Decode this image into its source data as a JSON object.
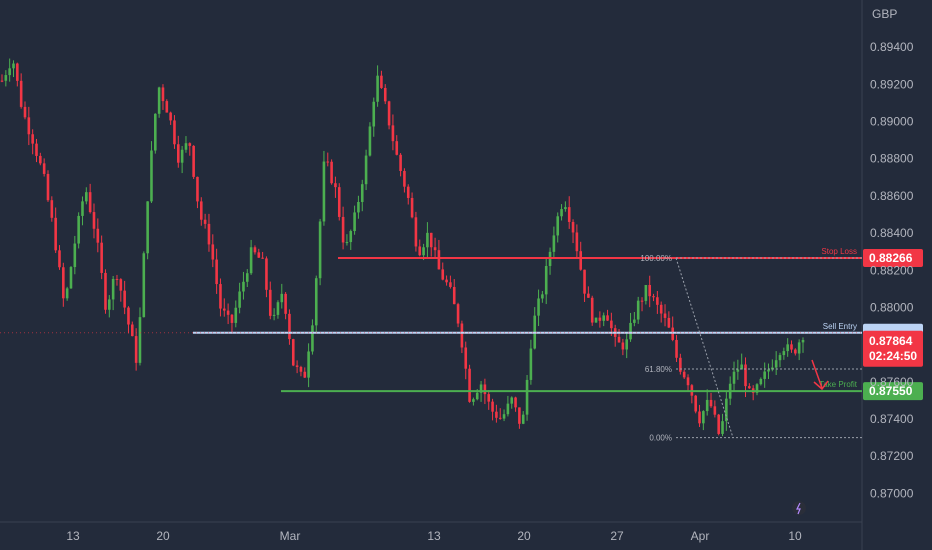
{
  "chart_data": {
    "type": "candlestick",
    "currency_label": "GBP",
    "y_axis": {
      "min": 0.87,
      "max": 0.896,
      "ticks": [
        "0.89400",
        "0.89200",
        "0.89000",
        "0.88800",
        "0.88600",
        "0.88400",
        "0.88200",
        "0.88000",
        "0.87600",
        "0.87400",
        "0.87200",
        "0.87000"
      ]
    },
    "x_axis": {
      "ticks": [
        "13",
        "20",
        "Mar",
        "13",
        "20",
        "27",
        "Apr",
        "10"
      ]
    },
    "levels": [
      {
        "name": "stop-loss",
        "label": "Stop Loss",
        "price": 0.88266,
        "badge": "0.88266",
        "color": "#f23645"
      },
      {
        "name": "sell-entry",
        "label": "Sell Entry",
        "price": 0.87864,
        "badge": "0.87864",
        "color": "#bcd4f5"
      },
      {
        "name": "take-profit",
        "label": "Take Profit",
        "price": 0.8755,
        "badge": "0.87550",
        "color": "#4caf50"
      }
    ],
    "current_price": {
      "value": "0.87864",
      "countdown": "02:24:50"
    },
    "fib": {
      "top_label": "100.00%",
      "mid_label": "61.80%",
      "bottom_label": "0.00%",
      "top_price": 0.88266,
      "bottom_price": 0.873
    },
    "price_path": [
      0.8922,
      0.8935,
      0.8905,
      0.889,
      0.887,
      0.884,
      0.88,
      0.8835,
      0.8865,
      0.884,
      0.88,
      0.882,
      0.8795,
      0.877,
      0.886,
      0.892,
      0.8905,
      0.888,
      0.889,
      0.885,
      0.8835,
      0.88,
      0.879,
      0.881,
      0.883,
      0.8825,
      0.879,
      0.881,
      0.877,
      0.876,
      0.88,
      0.888,
      0.8865,
      0.883,
      0.885,
      0.888,
      0.8925,
      0.8905,
      0.888,
      0.886,
      0.883,
      0.884,
      0.882,
      0.881,
      0.879,
      0.875,
      0.876,
      0.8745,
      0.874,
      0.875,
      0.8735,
      0.879,
      0.881,
      0.884,
      0.886,
      0.884,
      0.881,
      0.879,
      0.88,
      0.878,
      0.878,
      0.88,
      0.881,
      0.88,
      0.879,
      0.877,
      0.876,
      0.874,
      0.875,
      0.873,
      0.876,
      0.877,
      0.875,
      0.876,
      0.877,
      0.878,
      0.8775,
      0.8786
    ]
  }
}
